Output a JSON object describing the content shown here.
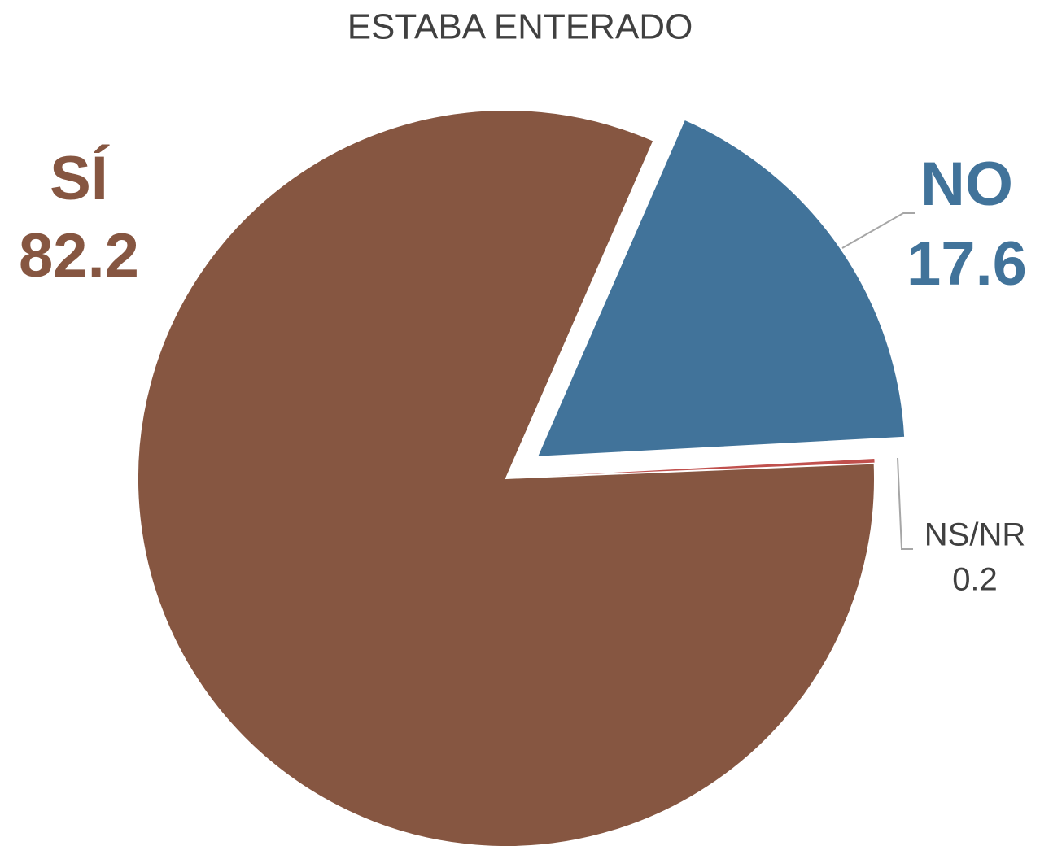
{
  "chart_data": {
    "type": "pie",
    "title": "ESTABA ENTERADO",
    "categories": [
      "NO",
      "NS/NR",
      "SÍ"
    ],
    "values": [
      17.6,
      0.2,
      82.2
    ],
    "colors": [
      "#41739a",
      "#c0504d",
      "#865641"
    ]
  }
}
